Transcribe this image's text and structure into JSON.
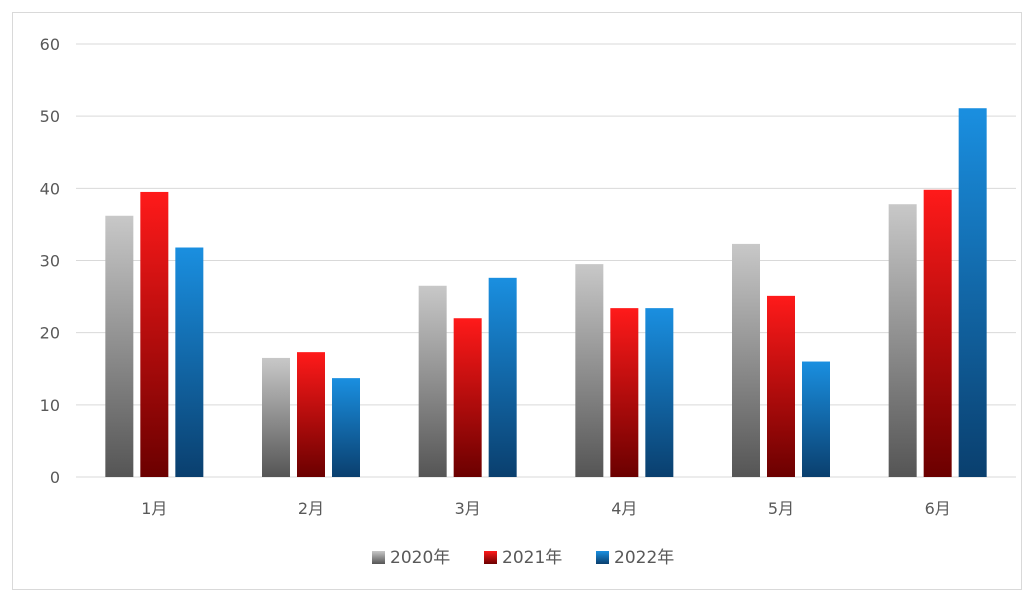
{
  "chart_data": {
    "type": "bar",
    "categories": [
      "1月",
      "2月",
      "3月",
      "4月",
      "5月",
      "6月"
    ],
    "series": [
      {
        "name": "2020年",
        "values": [
          36.2,
          16.5,
          26.5,
          29.5,
          32.3,
          37.8
        ],
        "color_top": "#c8c8c8",
        "color_bottom": "#555555"
      },
      {
        "name": "2021年",
        "values": [
          39.5,
          17.3,
          22.0,
          23.4,
          25.1,
          39.8
        ],
        "color_top": "#ff1a1a",
        "color_bottom": "#6b0000"
      },
      {
        "name": "2022年",
        "values": [
          31.8,
          13.7,
          27.6,
          23.4,
          16.0,
          51.1
        ],
        "color_top": "#1a8fe0",
        "color_bottom": "#0a3f6e"
      }
    ],
    "y_ticks": [
      "0",
      "10",
      "20",
      "30",
      "40",
      "50",
      "60"
    ],
    "ylim": [
      0,
      60
    ],
    "grid": true,
    "legend_position": "bottom",
    "colors": {
      "grid": "#d9d9d9",
      "text": "#595959"
    }
  }
}
